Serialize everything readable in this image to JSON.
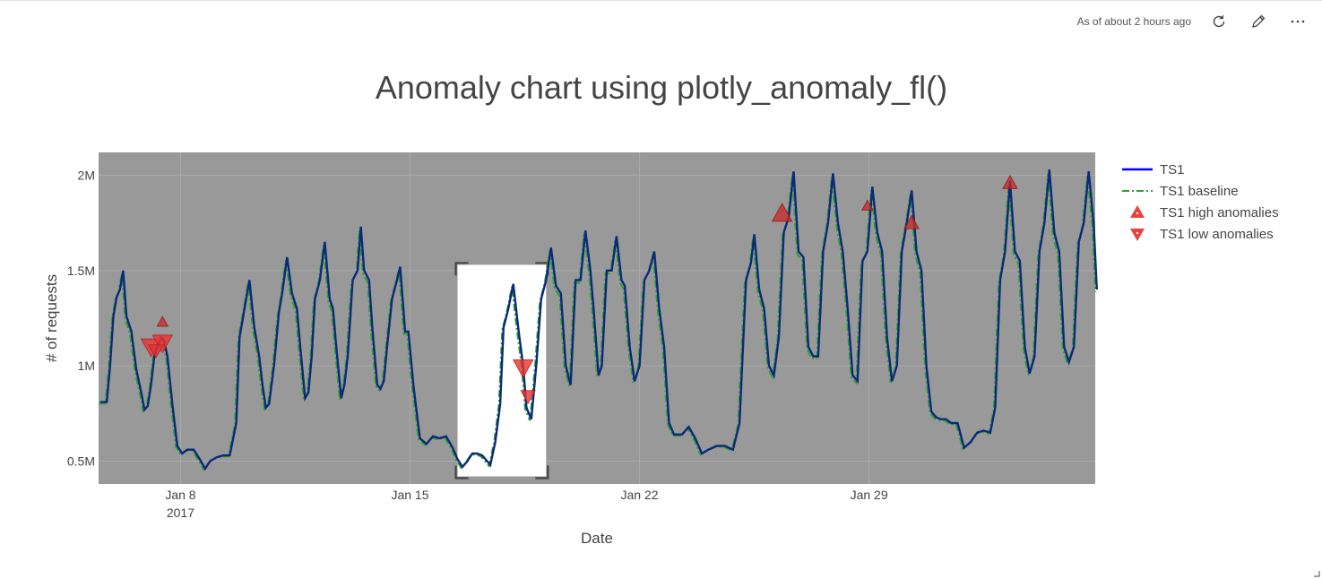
{
  "toolbar": {
    "status": "As of about 2 hours ago",
    "refresh_icon": "refresh-icon",
    "edit_icon": "edit-icon",
    "more_icon": "more-icon"
  },
  "chart_data": {
    "type": "line",
    "title": "Anomaly chart using plotly_anomaly_fl()",
    "xlabel": "Date",
    "ylabel": "# of requests",
    "x_ticks": [
      {
        "label": "Jan 8",
        "sub": "2017",
        "day": 8
      },
      {
        "label": "Jan 15",
        "sub": "",
        "day": 15
      },
      {
        "label": "Jan 22",
        "sub": "",
        "day": 22
      },
      {
        "label": "Jan 29",
        "sub": "",
        "day": 29
      }
    ],
    "y_ticks": [
      {
        "label": "0.5M",
        "value": 500000
      },
      {
        "label": "1M",
        "value": 1000000
      },
      {
        "label": "1.5M",
        "value": 1500000
      },
      {
        "label": "2M",
        "value": 2000000
      }
    ],
    "xlim_days": [
      5.5,
      35.9
    ],
    "ylim": [
      380000,
      2120000
    ],
    "legend_position": "right",
    "plot_bg": "#999999",
    "series": [
      {
        "name": "TS1",
        "color": "#0000ff",
        "dash": "solid"
      },
      {
        "name": "TS1 baseline",
        "color": "#2ca02c",
        "dash": "dashdot"
      },
      {
        "name": "TS1 high anomalies",
        "color": "#e8413e",
        "marker": "triangle-up"
      },
      {
        "name": "TS1 low anomalies",
        "color": "#e8413e",
        "marker": "triangle-down"
      }
    ],
    "ts1_points": [
      [
        5.55,
        810000
      ],
      [
        5.75,
        810000
      ],
      [
        5.85,
        1000000
      ],
      [
        5.95,
        1260000
      ],
      [
        6.05,
        1360000
      ],
      [
        6.15,
        1400000
      ],
      [
        6.25,
        1500000
      ],
      [
        6.35,
        1260000
      ],
      [
        6.5,
        1180000
      ],
      [
        6.65,
        980000
      ],
      [
        6.8,
        860000
      ],
      [
        6.9,
        770000
      ],
      [
        7.0,
        790000
      ],
      [
        7.1,
        900000
      ],
      [
        7.2,
        1050000
      ],
      [
        7.3,
        1100000
      ],
      [
        7.4,
        1150000
      ],
      [
        7.5,
        1130000
      ],
      [
        7.6,
        1050000
      ],
      [
        7.75,
        800000
      ],
      [
        7.9,
        580000
      ],
      [
        8.05,
        540000
      ],
      [
        8.2,
        560000
      ],
      [
        8.4,
        560000
      ],
      [
        8.55,
        520000
      ],
      [
        8.75,
        460000
      ],
      [
        8.9,
        500000
      ],
      [
        9.1,
        520000
      ],
      [
        9.3,
        530000
      ],
      [
        9.5,
        530000
      ],
      [
        9.7,
        700000
      ],
      [
        9.8,
        1150000
      ],
      [
        9.95,
        1300000
      ],
      [
        10.1,
        1450000
      ],
      [
        10.25,
        1200000
      ],
      [
        10.4,
        1050000
      ],
      [
        10.5,
        900000
      ],
      [
        10.6,
        780000
      ],
      [
        10.7,
        800000
      ],
      [
        10.85,
        1000000
      ],
      [
        11.0,
        1280000
      ],
      [
        11.1,
        1380000
      ],
      [
        11.25,
        1570000
      ],
      [
        11.4,
        1380000
      ],
      [
        11.55,
        1300000
      ],
      [
        11.65,
        1100000
      ],
      [
        11.8,
        830000
      ],
      [
        11.9,
        860000
      ],
      [
        12.0,
        1050000
      ],
      [
        12.1,
        1350000
      ],
      [
        12.25,
        1450000
      ],
      [
        12.4,
        1650000
      ],
      [
        12.55,
        1350000
      ],
      [
        12.65,
        1300000
      ],
      [
        12.75,
        1100000
      ],
      [
        12.9,
        830000
      ],
      [
        13.0,
        900000
      ],
      [
        13.1,
        1050000
      ],
      [
        13.25,
        1450000
      ],
      [
        13.4,
        1500000
      ],
      [
        13.5,
        1730000
      ],
      [
        13.6,
        1500000
      ],
      [
        13.75,
        1450000
      ],
      [
        13.85,
        1200000
      ],
      [
        14.0,
        900000
      ],
      [
        14.1,
        880000
      ],
      [
        14.2,
        920000
      ],
      [
        14.3,
        1100000
      ],
      [
        14.45,
        1350000
      ],
      [
        14.6,
        1450000
      ],
      [
        14.7,
        1520000
      ],
      [
        14.85,
        1180000
      ],
      [
        14.95,
        1180000
      ],
      [
        15.1,
        900000
      ],
      [
        15.3,
        620000
      ],
      [
        15.5,
        590000
      ],
      [
        15.7,
        630000
      ],
      [
        15.9,
        620000
      ],
      [
        16.1,
        630000
      ],
      [
        16.3,
        570000
      ],
      [
        16.45,
        510000
      ],
      [
        16.6,
        470000
      ],
      [
        16.75,
        500000
      ],
      [
        16.9,
        540000
      ],
      [
        17.05,
        540000
      ],
      [
        17.2,
        530000
      ],
      [
        17.35,
        500000
      ],
      [
        17.45,
        480000
      ],
      [
        17.6,
        600000
      ],
      [
        17.75,
        800000
      ],
      [
        17.85,
        1200000
      ],
      [
        18.0,
        1300000
      ],
      [
        18.15,
        1430000
      ],
      [
        18.3,
        1200000
      ],
      [
        18.45,
        1000000
      ],
      [
        18.55,
        780000
      ],
      [
        18.7,
        720000
      ],
      [
        18.85,
        1000000
      ],
      [
        19.0,
        1350000
      ],
      [
        19.15,
        1450000
      ],
      [
        19.3,
        1620000
      ],
      [
        19.45,
        1420000
      ],
      [
        19.6,
        1380000
      ],
      [
        19.75,
        1000000
      ],
      [
        19.9,
        900000
      ],
      [
        20.05,
        1450000
      ],
      [
        20.2,
        1450000
      ],
      [
        20.35,
        1710000
      ],
      [
        20.5,
        1500000
      ],
      [
        20.6,
        1300000
      ],
      [
        20.75,
        950000
      ],
      [
        20.85,
        1000000
      ],
      [
        21.0,
        1500000
      ],
      [
        21.15,
        1500000
      ],
      [
        21.3,
        1680000
      ],
      [
        21.45,
        1450000
      ],
      [
        21.55,
        1420000
      ],
      [
        21.7,
        1100000
      ],
      [
        21.85,
        920000
      ],
      [
        22.0,
        1000000
      ],
      [
        22.15,
        1450000
      ],
      [
        22.3,
        1500000
      ],
      [
        22.45,
        1600000
      ],
      [
        22.6,
        1300000
      ],
      [
        22.75,
        1100000
      ],
      [
        22.9,
        700000
      ],
      [
        23.05,
        640000
      ],
      [
        23.3,
        640000
      ],
      [
        23.5,
        680000
      ],
      [
        23.7,
        620000
      ],
      [
        23.9,
        540000
      ],
      [
        24.1,
        560000
      ],
      [
        24.35,
        580000
      ],
      [
        24.6,
        580000
      ],
      [
        24.85,
        560000
      ],
      [
        25.05,
        700000
      ],
      [
        25.25,
        1450000
      ],
      [
        25.4,
        1540000
      ],
      [
        25.5,
        1690000
      ],
      [
        25.65,
        1400000
      ],
      [
        25.8,
        1300000
      ],
      [
        25.95,
        1000000
      ],
      [
        26.1,
        950000
      ],
      [
        26.25,
        1150000
      ],
      [
        26.4,
        1700000
      ],
      [
        26.55,
        1780000
      ],
      [
        26.7,
        2020000
      ],
      [
        26.85,
        1600000
      ],
      [
        27.0,
        1570000
      ],
      [
        27.15,
        1100000
      ],
      [
        27.3,
        1050000
      ],
      [
        27.45,
        1050000
      ],
      [
        27.6,
        1600000
      ],
      [
        27.75,
        1750000
      ],
      [
        27.9,
        2010000
      ],
      [
        28.05,
        1750000
      ],
      [
        28.2,
        1600000
      ],
      [
        28.35,
        1300000
      ],
      [
        28.5,
        950000
      ],
      [
        28.65,
        920000
      ],
      [
        28.8,
        1550000
      ],
      [
        28.95,
        1600000
      ],
      [
        29.1,
        1940000
      ],
      [
        29.25,
        1700000
      ],
      [
        29.4,
        1600000
      ],
      [
        29.55,
        1150000
      ],
      [
        29.7,
        920000
      ],
      [
        29.85,
        1000000
      ],
      [
        30.0,
        1600000
      ],
      [
        30.15,
        1750000
      ],
      [
        30.3,
        1920000
      ],
      [
        30.45,
        1600000
      ],
      [
        30.6,
        1500000
      ],
      [
        30.75,
        1000000
      ],
      [
        30.9,
        760000
      ],
      [
        31.05,
        730000
      ],
      [
        31.2,
        720000
      ],
      [
        31.35,
        720000
      ],
      [
        31.5,
        700000
      ],
      [
        31.7,
        700000
      ],
      [
        31.9,
        570000
      ],
      [
        32.1,
        600000
      ],
      [
        32.3,
        650000
      ],
      [
        32.5,
        660000
      ],
      [
        32.7,
        650000
      ],
      [
        32.85,
        780000
      ],
      [
        33.0,
        1450000
      ],
      [
        33.15,
        1600000
      ],
      [
        33.3,
        1970000
      ],
      [
        33.45,
        1600000
      ],
      [
        33.6,
        1550000
      ],
      [
        33.75,
        1100000
      ],
      [
        33.9,
        960000
      ],
      [
        34.05,
        1050000
      ],
      [
        34.2,
        1600000
      ],
      [
        34.35,
        1750000
      ],
      [
        34.5,
        2030000
      ],
      [
        34.65,
        1700000
      ],
      [
        34.8,
        1600000
      ],
      [
        34.95,
        1100000
      ],
      [
        35.1,
        1020000
      ],
      [
        35.25,
        1100000
      ],
      [
        35.4,
        1650000
      ],
      [
        35.55,
        1750000
      ],
      [
        35.7,
        2020000
      ],
      [
        35.85,
        1750000
      ],
      [
        35.95,
        1400000
      ]
    ],
    "high_anomalies": [
      {
        "day": 7.45,
        "value": 1230000,
        "size": "small"
      },
      {
        "day": 26.35,
        "value": 1800000,
        "size": "large"
      },
      {
        "day": 28.95,
        "value": 1840000,
        "size": "small"
      },
      {
        "day": 30.3,
        "value": 1750000,
        "size": "medium"
      },
      {
        "day": 33.3,
        "value": 1960000,
        "size": "medium"
      }
    ],
    "low_anomalies": [
      {
        "day": 7.1,
        "value": 1100000,
        "size": "large"
      },
      {
        "day": 7.45,
        "value": 1120000,
        "size": "large"
      },
      {
        "day": 7.25,
        "value": 1080000,
        "size": "medium"
      },
      {
        "day": 18.45,
        "value": 990000,
        "size": "large"
      },
      {
        "day": 18.6,
        "value": 840000,
        "size": "medium"
      }
    ],
    "highlight_range_days": [
      16.45,
      19.15
    ],
    "highlight_range_values": [
      420000,
      1530000
    ]
  }
}
